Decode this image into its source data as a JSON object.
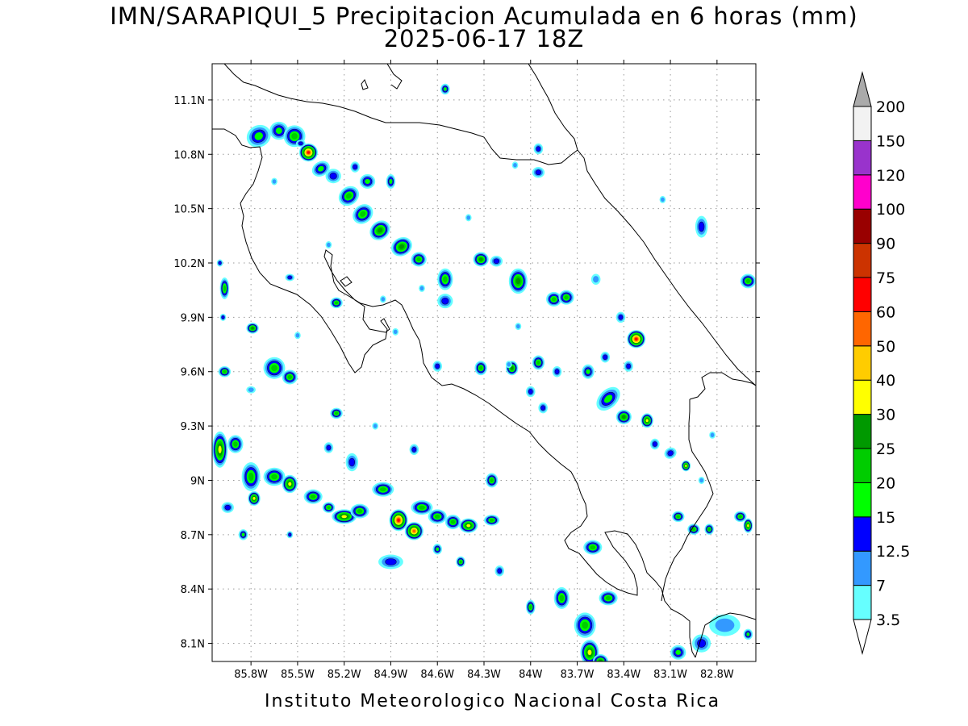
{
  "title": {
    "line1": "IMN/SARAPIQUI_5 Precipitacion Acumulada en 6 horas (mm)",
    "line2": "2025-06-17 18Z"
  },
  "footer": "Instituto Meteorologico Nacional Costa Rica",
  "map": {
    "lon_range": [
      -86.05,
      -82.55
    ],
    "lat_range": [
      8.0,
      11.3
    ],
    "x_ticks": [
      {
        "label": "85.8W",
        "lon": -85.8
      },
      {
        "label": "85.5W",
        "lon": -85.5
      },
      {
        "label": "85.2W",
        "lon": -85.2
      },
      {
        "label": "84.9W",
        "lon": -84.9
      },
      {
        "label": "84.6W",
        "lon": -84.6
      },
      {
        "label": "84.3W",
        "lon": -84.3
      },
      {
        "label": "84W",
        "lon": -84.0
      },
      {
        "label": "83.7W",
        "lon": -83.7
      },
      {
        "label": "83.4W",
        "lon": -83.4
      },
      {
        "label": "83.1W",
        "lon": -83.1
      },
      {
        "label": "82.8W",
        "lon": -82.8
      }
    ],
    "y_ticks": [
      {
        "label": "11.1N",
        "lat": 11.1
      },
      {
        "label": "10.8N",
        "lat": 10.8
      },
      {
        "label": "10.5N",
        "lat": 10.5
      },
      {
        "label": "10.2N",
        "lat": 10.2
      },
      {
        "label": "9.9N",
        "lat": 9.9
      },
      {
        "label": "9.6N",
        "lat": 9.6
      },
      {
        "label": "9.3N",
        "lat": 9.3
      },
      {
        "label": "9N",
        "lat": 9.0
      },
      {
        "label": "8.7N",
        "lat": 8.7
      },
      {
        "label": "8.4N",
        "lat": 8.4
      },
      {
        "label": "8.1N",
        "lat": 8.1
      }
    ],
    "grid": true
  },
  "colorbar": {
    "levels": [
      "3.5",
      "7",
      "12.5",
      "15",
      "20",
      "25",
      "30",
      "40",
      "50",
      "60",
      "75",
      "90",
      "100",
      "120",
      "150",
      "200"
    ],
    "colors": [
      "#66ffff",
      "#3399ff",
      "#0000ff",
      "#00ff00",
      "#00cc00",
      "#009900",
      "#ffff00",
      "#ffcc00",
      "#ff6600",
      "#ff0000",
      "#cc3300",
      "#990000",
      "#ff00cc",
      "#9933cc",
      "#f2f2f2",
      "#aaaaaa"
    ],
    "bottom_triangle_color": "#ffffff",
    "top_triangle_color": "#aaaaaa"
  },
  "cells": [
    [
      -85.75,
      10.9,
      0.08,
      0.06,
      3,
      -30
    ],
    [
      -85.62,
      10.93,
      0.06,
      0.05,
      3,
      0
    ],
    [
      -85.52,
      10.9,
      0.07,
      0.06,
      4,
      0
    ],
    [
      -85.43,
      10.81,
      0.06,
      0.05,
      9,
      0
    ],
    [
      -85.35,
      10.72,
      0.06,
      0.04,
      3,
      -30
    ],
    [
      -85.27,
      10.68,
      0.05,
      0.04,
      2,
      0
    ],
    [
      -85.17,
      10.57,
      0.07,
      0.05,
      4,
      -40
    ],
    [
      -85.08,
      10.47,
      0.07,
      0.05,
      4,
      -40
    ],
    [
      -84.97,
      10.38,
      0.07,
      0.05,
      5,
      -40
    ],
    [
      -84.83,
      10.29,
      0.07,
      0.05,
      5,
      -30
    ],
    [
      -84.72,
      10.22,
      0.05,
      0.04,
      4,
      0
    ],
    [
      -85.05,
      10.65,
      0.05,
      0.04,
      3,
      0
    ],
    [
      -85.13,
      10.73,
      0.03,
      0.03,
      2,
      0
    ],
    [
      -84.55,
      10.11,
      0.05,
      0.06,
      4,
      0
    ],
    [
      -84.32,
      10.22,
      0.05,
      0.04,
      5,
      0
    ],
    [
      -84.22,
      10.21,
      0.04,
      0.03,
      2,
      0
    ],
    [
      -84.08,
      10.1,
      0.06,
      0.07,
      5,
      0
    ],
    [
      -83.85,
      10.0,
      0.05,
      0.04,
      4,
      0
    ],
    [
      -83.77,
      10.01,
      0.05,
      0.04,
      4,
      0
    ],
    [
      -83.58,
      10.11,
      0.03,
      0.03,
      1,
      0
    ],
    [
      -83.32,
      9.78,
      0.06,
      0.05,
      9,
      0
    ],
    [
      -83.42,
      9.9,
      0.03,
      0.03,
      2,
      0
    ],
    [
      -83.52,
      9.68,
      0.03,
      0.03,
      2,
      0
    ],
    [
      -83.37,
      9.63,
      0.03,
      0.03,
      2,
      0
    ],
    [
      -84.55,
      9.99,
      0.05,
      0.04,
      2,
      0
    ],
    [
      -84.87,
      9.82,
      0.02,
      0.02,
      1,
      0
    ],
    [
      -84.6,
      9.63,
      0.03,
      0.03,
      2,
      0
    ],
    [
      -84.32,
      9.62,
      0.04,
      0.04,
      4,
      0
    ],
    [
      -84.12,
      9.62,
      0.04,
      0.04,
      5,
      0
    ],
    [
      -83.95,
      9.65,
      0.04,
      0.04,
      4,
      0
    ],
    [
      -83.83,
      9.6,
      0.03,
      0.03,
      2,
      0
    ],
    [
      -84.0,
      9.49,
      0.03,
      0.03,
      2,
      0
    ],
    [
      -83.92,
      9.4,
      0.03,
      0.03,
      2,
      0
    ],
    [
      -83.63,
      9.6,
      0.04,
      0.04,
      3,
      0
    ],
    [
      -84.08,
      9.85,
      0.02,
      0.02,
      1,
      0
    ],
    [
      -84.14,
      9.64,
      0.02,
      0.02,
      1,
      0
    ],
    [
      -83.5,
      9.45,
      0.09,
      0.05,
      3,
      -45
    ],
    [
      -83.4,
      9.35,
      0.05,
      0.04,
      5,
      0
    ],
    [
      -83.25,
      9.33,
      0.04,
      0.04,
      6,
      0
    ],
    [
      -83.2,
      9.2,
      0.03,
      0.03,
      2,
      0
    ],
    [
      -83.1,
      9.15,
      0.04,
      0.03,
      2,
      -30
    ],
    [
      -83.0,
      9.08,
      0.03,
      0.03,
      6,
      0
    ],
    [
      -82.9,
      9.0,
      0.02,
      0.02,
      1,
      0
    ],
    [
      -82.83,
      9.25,
      0.02,
      0.02,
      1,
      0
    ],
    [
      -85.25,
      9.98,
      0.04,
      0.03,
      4,
      0
    ],
    [
      -85.55,
      10.12,
      0.03,
      0.02,
      2,
      0
    ],
    [
      -85.79,
      9.84,
      0.04,
      0.03,
      5,
      0
    ],
    [
      -85.98,
      9.9,
      0.02,
      0.02,
      2,
      0
    ],
    [
      -85.65,
      9.62,
      0.07,
      0.06,
      4,
      0
    ],
    [
      -85.55,
      9.57,
      0.05,
      0.04,
      4,
      0
    ],
    [
      -85.97,
      9.6,
      0.04,
      0.03,
      4,
      0
    ],
    [
      -85.97,
      10.06,
      0.03,
      0.06,
      4,
      0
    ],
    [
      -86.0,
      10.2,
      0.02,
      0.02,
      2,
      0
    ],
    [
      -85.25,
      9.37,
      0.04,
      0.03,
      4,
      0
    ],
    [
      -86.0,
      9.17,
      0.05,
      0.1,
      6,
      0
    ],
    [
      -85.9,
      9.2,
      0.05,
      0.05,
      4,
      0
    ],
    [
      -85.8,
      9.02,
      0.06,
      0.08,
      4,
      0
    ],
    [
      -85.78,
      8.9,
      0.04,
      0.04,
      6,
      0
    ],
    [
      -85.65,
      9.02,
      0.07,
      0.05,
      4,
      0
    ],
    [
      -85.55,
      8.98,
      0.05,
      0.05,
      6,
      0
    ],
    [
      -85.4,
      8.91,
      0.06,
      0.04,
      4,
      0
    ],
    [
      -85.3,
      8.85,
      0.04,
      0.03,
      4,
      0
    ],
    [
      -85.2,
      8.8,
      0.08,
      0.04,
      6,
      0
    ],
    [
      -85.1,
      8.83,
      0.06,
      0.04,
      4,
      0
    ],
    [
      -84.95,
      8.95,
      0.07,
      0.04,
      4,
      0
    ],
    [
      -84.85,
      8.78,
      0.06,
      0.06,
      9,
      0
    ],
    [
      -84.75,
      8.72,
      0.06,
      0.05,
      8,
      0
    ],
    [
      -84.7,
      8.85,
      0.07,
      0.04,
      4,
      0
    ],
    [
      -84.6,
      8.8,
      0.06,
      0.04,
      4,
      0
    ],
    [
      -84.5,
      8.77,
      0.05,
      0.04,
      4,
      0
    ],
    [
      -84.4,
      8.75,
      0.06,
      0.04,
      6,
      0
    ],
    [
      -84.25,
      8.78,
      0.05,
      0.03,
      4,
      0
    ],
    [
      -84.25,
      9.0,
      0.04,
      0.04,
      4,
      0
    ],
    [
      -85.85,
      8.7,
      0.03,
      0.03,
      3,
      0
    ],
    [
      -85.95,
      8.85,
      0.04,
      0.03,
      2,
      0
    ],
    [
      -85.55,
      8.7,
      0.02,
      0.02,
      2,
      0
    ],
    [
      -84.6,
      8.62,
      0.03,
      0.03,
      3,
      0
    ],
    [
      -84.45,
      8.55,
      0.03,
      0.03,
      4,
      0
    ],
    [
      -84.2,
      8.5,
      0.03,
      0.03,
      2,
      0
    ],
    [
      -84.0,
      8.3,
      0.03,
      0.04,
      4,
      0
    ],
    [
      -83.8,
      8.35,
      0.05,
      0.06,
      4,
      0
    ],
    [
      -83.5,
      8.35,
      0.06,
      0.04,
      4,
      0
    ],
    [
      -83.65,
      8.2,
      0.07,
      0.07,
      4,
      0
    ],
    [
      -83.62,
      8.05,
      0.06,
      0.07,
      6,
      0
    ],
    [
      -83.55,
      8.0,
      0.05,
      0.04,
      5,
      0
    ],
    [
      -83.6,
      8.63,
      0.06,
      0.04,
      4,
      0
    ],
    [
      -83.05,
      8.8,
      0.04,
      0.03,
      4,
      0
    ],
    [
      -82.95,
      8.73,
      0.04,
      0.03,
      4,
      0
    ],
    [
      -82.85,
      8.73,
      0.03,
      0.03,
      4,
      0
    ],
    [
      -82.65,
      8.8,
      0.04,
      0.03,
      4,
      0
    ],
    [
      -82.6,
      8.75,
      0.03,
      0.04,
      6,
      0
    ],
    [
      -82.6,
      10.1,
      0.05,
      0.04,
      4,
      0
    ],
    [
      -82.9,
      10.4,
      0.04,
      0.06,
      2,
      0
    ],
    [
      -83.95,
      10.7,
      0.04,
      0.03,
      2,
      0
    ],
    [
      -84.1,
      10.74,
      0.02,
      0.02,
      1,
      0
    ],
    [
      -83.95,
      10.83,
      0.03,
      0.03,
      2,
      0
    ],
    [
      -84.55,
      11.16,
      0.03,
      0.03,
      3,
      0
    ],
    [
      -85.48,
      10.86,
      0.03,
      0.02,
      2,
      0
    ],
    [
      -84.9,
      10.65,
      0.03,
      0.04,
      3,
      0
    ],
    [
      -85.3,
      10.3,
      0.02,
      0.02,
      1,
      0
    ],
    [
      -84.7,
      10.06,
      0.02,
      0.02,
      1,
      0
    ],
    [
      -84.95,
      10.0,
      0.02,
      0.02,
      1,
      0
    ],
    [
      -85.15,
      9.1,
      0.04,
      0.05,
      2,
      0
    ],
    [
      -84.75,
      9.17,
      0.03,
      0.03,
      2,
      0
    ],
    [
      -85.3,
      9.18,
      0.03,
      0.03,
      2,
      0
    ],
    [
      -82.75,
      8.2,
      0.1,
      0.06,
      1,
      0
    ],
    [
      -82.9,
      8.1,
      0.06,
      0.05,
      2,
      0
    ],
    [
      -83.05,
      8.05,
      0.05,
      0.04,
      3,
      0
    ],
    [
      -82.6,
      8.15,
      0.03,
      0.03,
      3,
      0
    ],
    [
      -85.65,
      10.65,
      0.02,
      0.02,
      1,
      0
    ],
    [
      -85.5,
      9.8,
      0.02,
      0.02,
      1,
      0
    ],
    [
      -84.4,
      10.45,
      0.02,
      0.02,
      1,
      0
    ],
    [
      -83.15,
      10.55,
      0.02,
      0.02,
      1,
      0
    ],
    [
      -85.8,
      9.5,
      0.03,
      0.02,
      1,
      0
    ],
    [
      -85.0,
      9.3,
      0.02,
      0.02,
      1,
      0
    ],
    [
      -84.9,
      8.55,
      0.08,
      0.04,
      2,
      0
    ]
  ]
}
